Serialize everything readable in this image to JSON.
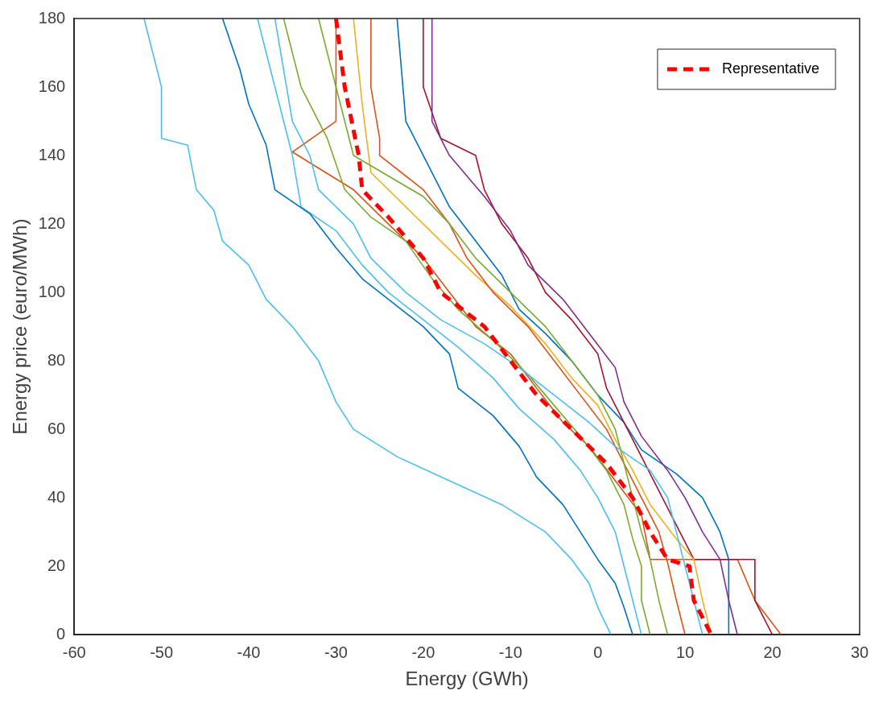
{
  "chart_data": {
    "type": "line",
    "xlabel": "Energy (GWh)",
    "ylabel": "Energy price (euro/MWh)",
    "xlim": [
      -60,
      30
    ],
    "xticks": [
      -60,
      -50,
      -40,
      -30,
      -20,
      -10,
      0,
      10,
      20,
      30
    ],
    "ylim": [
      0,
      180
    ],
    "yticks": [
      0,
      20,
      40,
      60,
      80,
      100,
      120,
      140,
      160,
      180
    ],
    "grid": false,
    "legend": "top right",
    "marker": "none",
    "series": [
      {
        "color": "#4dbeee",
        "x": [
          -52,
          -51,
          -50,
          -50,
          -47,
          -46,
          -44,
          -43,
          -40,
          -38,
          -35,
          -32,
          -30,
          -28,
          -23,
          -17,
          -11,
          -6,
          -3,
          -1,
          0,
          1.5
        ],
        "values": [
          180,
          170,
          160,
          145,
          143,
          130,
          124,
          115,
          108,
          98,
          90,
          80,
          68,
          60,
          52,
          45,
          38,
          30,
          22,
          15,
          8,
          0
        ]
      },
      {
        "color": "#0072bd",
        "x": [
          -43,
          -41,
          -40,
          -38,
          -37,
          -33,
          -30,
          -27,
          -24,
          -20,
          -17,
          -16,
          -12,
          -9,
          -7,
          -4,
          -2,
          0,
          2,
          3,
          4
        ],
        "values": [
          180,
          165,
          155,
          143,
          130,
          123,
          113,
          104,
          98,
          90,
          82,
          72,
          64,
          55,
          46,
          38,
          30,
          22,
          15,
          8,
          0
        ]
      },
      {
        "color": "#4dbeee",
        "x": [
          -39,
          -37,
          -35,
          -34,
          -30,
          -27,
          -24,
          -20,
          -16,
          -12,
          -9,
          -5,
          -2,
          0,
          2,
          3,
          4,
          5
        ],
        "values": [
          180,
          160,
          140,
          125,
          118,
          108,
          100,
          92,
          84,
          75,
          66,
          57,
          48,
          40,
          30,
          20,
          10,
          0
        ]
      },
      {
        "color": "#4dbeee",
        "x": [
          -37,
          -35,
          -33,
          -32,
          -28,
          -26,
          -22,
          -18,
          -13,
          -9,
          -5,
          -1,
          2,
          6,
          8,
          9,
          10,
          11,
          12
        ],
        "values": [
          180,
          150,
          140,
          130,
          120,
          110,
          100,
          92,
          85,
          78,
          70,
          62,
          55,
          48,
          40,
          30,
          20,
          10,
          0
        ]
      },
      {
        "color": "#77ac30",
        "x": [
          -36,
          -34,
          -31,
          -29,
          -26,
          -22,
          -19,
          -16,
          -12,
          -8,
          -5,
          -2,
          1,
          3,
          4,
          5,
          5,
          6
        ],
        "values": [
          180,
          160,
          145,
          130,
          122,
          115,
          104,
          95,
          86,
          76,
          67,
          58,
          48,
          38,
          28,
          20,
          10,
          0
        ]
      },
      {
        "color": "#77ac30",
        "x": [
          -32,
          -30,
          -28,
          -20,
          -17,
          -14,
          -10,
          -6,
          -3,
          0,
          2,
          3,
          4,
          5,
          6,
          7,
          8
        ],
        "values": [
          180,
          160,
          140,
          128,
          120,
          110,
          100,
          90,
          80,
          70,
          60,
          50,
          40,
          30,
          22,
          10,
          0
        ]
      },
      {
        "color": "#d95319",
        "x": [
          -26,
          -26,
          -25,
          -25,
          -20,
          -17,
          -15,
          -12,
          -8,
          -5,
          -2,
          1,
          3,
          5,
          7,
          8,
          9,
          10
        ],
        "values": [
          180,
          160,
          145,
          140,
          130,
          120,
          110,
          100,
          90,
          80,
          70,
          60,
          50,
          40,
          30,
          21,
          10,
          0
        ]
      },
      {
        "color": "#edb120",
        "x": [
          -28,
          -27,
          -26,
          -22,
          -18,
          -14,
          -10,
          -6,
          -3,
          0,
          2,
          4,
          6,
          9,
          11,
          12,
          13
        ],
        "values": [
          180,
          155,
          135,
          125,
          115,
          105,
          96,
          85,
          75,
          67,
          57,
          48,
          38,
          28,
          22,
          10,
          0
        ]
      },
      {
        "color": "#7e2f8e",
        "x": [
          -19,
          -19,
          -17,
          -13,
          -10,
          -8,
          -4,
          -1,
          2,
          3,
          5,
          8,
          10,
          12,
          14,
          15,
          16
        ],
        "values": [
          180,
          150,
          140,
          128,
          118,
          108,
          98,
          88,
          78,
          68,
          58,
          48,
          40,
          30,
          22,
          10,
          0
        ]
      },
      {
        "color": "#a2142f",
        "x": [
          -20,
          -20,
          -18,
          -14,
          -13,
          -11,
          -8,
          -6,
          -3,
          0,
          1,
          3,
          5,
          7,
          9,
          11,
          18,
          18,
          20
        ],
        "values": [
          180,
          160,
          145,
          140,
          130,
          120,
          110,
          100,
          92,
          82,
          72,
          62,
          52,
          42,
          32,
          22,
          22,
          10,
          0
        ]
      },
      {
        "color": "#0072bd",
        "x": [
          -23,
          -22,
          -19,
          -17,
          -14,
          -11,
          -9,
          -6,
          -3,
          0,
          3,
          5,
          9,
          12,
          14,
          15,
          15,
          15
        ],
        "values": [
          180,
          150,
          135,
          125,
          115,
          105,
          95,
          88,
          80,
          70,
          62,
          54,
          47,
          40,
          30,
          22,
          10,
          0
        ]
      },
      {
        "color": "#d95319",
        "x": [
          -30,
          -30,
          -35,
          -28,
          -24,
          -20,
          -17,
          -14,
          -10,
          -7,
          -4,
          -1,
          2,
          5,
          6,
          16,
          18,
          21
        ],
        "values": [
          180,
          150,
          141,
          130,
          120,
          110,
          100,
          90,
          82,
          72,
          62,
          55,
          45,
          35,
          22,
          22,
          10,
          0
        ]
      },
      {
        "name": "Representative",
        "color": "#ff0000",
        "line_style": "dashed",
        "x": [
          -30,
          -29,
          -27.4,
          -27,
          -24,
          -20,
          -18,
          -13,
          -10,
          -7,
          -3,
          1,
          4,
          6,
          8,
          10.5,
          11,
          13
        ],
        "values": [
          180,
          160,
          140,
          130,
          122,
          110,
          100,
          90,
          80,
          70,
          60,
          50,
          40,
          30,
          22,
          20,
          10,
          0
        ]
      }
    ]
  }
}
